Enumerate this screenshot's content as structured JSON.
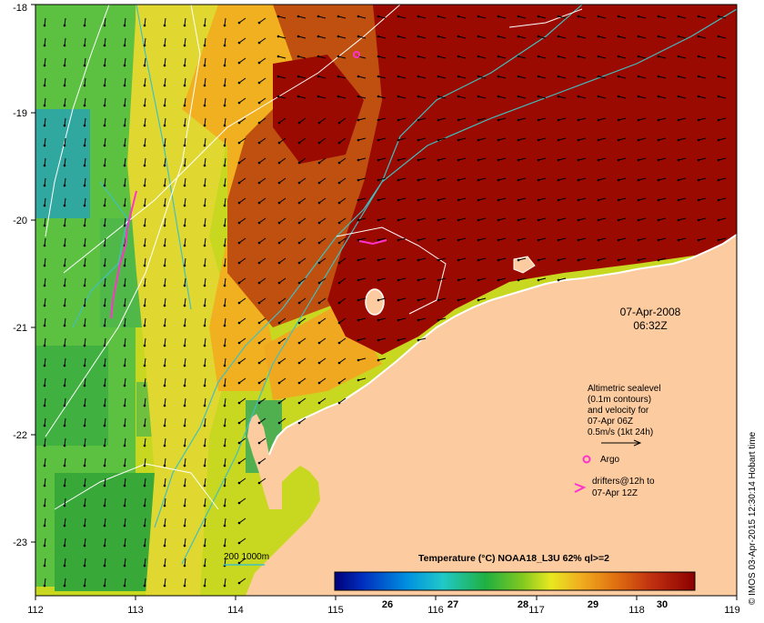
{
  "map": {
    "date": "07-Apr-2008",
    "time": "06:32Z",
    "x_ticks": [
      "112",
      "113",
      "114",
      "115",
      "116",
      "117",
      "118",
      "119"
    ],
    "y_ticks": [
      "-18",
      "-19",
      "-20",
      "-21",
      "-22",
      "-23"
    ],
    "legend": {
      "line1": "Altimetric sealevel",
      "line2": "(0.1m contours)",
      "line3": "and velocity for",
      "line4": "07-Apr 06Z",
      "line5": "0.5m/s (1kt 24h)",
      "argo": "Argo",
      "drifters1": "drifters@12h to",
      "drifters2": "07-Apr 12Z"
    },
    "isobath_label": "200  1000m",
    "colorbar": {
      "title": "Temperature (°C) NOAA18_L3U 62% ql>=2",
      "ticks": [
        "26",
        "27",
        "28",
        "29",
        "30"
      ]
    },
    "credit": "© IMOS 03-Apr-2015 12:30:14 Hobart time"
  },
  "colors": {
    "land": "#FCCBA0",
    "hot": "#9B0A00",
    "warm": "#E07A10",
    "mid": "#F0B020",
    "yellow": "#D8E020",
    "green": "#40B040",
    "isobath": "#40C0C0",
    "drifter": "#FF33CC"
  }
}
